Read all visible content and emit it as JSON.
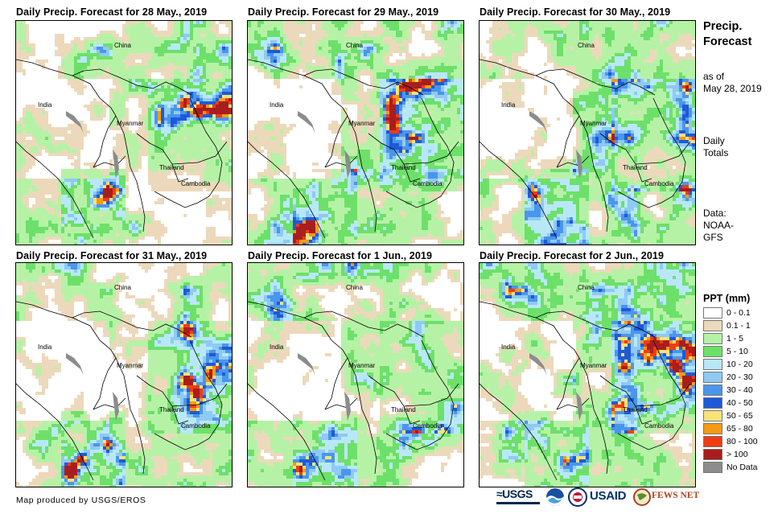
{
  "panels": [
    {
      "title": "Daily Precip. Forecast for 28 May., 2019",
      "variant": 0
    },
    {
      "title": "Daily Precip. Forecast for 29 May., 2019",
      "variant": 1
    },
    {
      "title": "Daily Precip. Forecast for 30 May., 2019",
      "variant": 2
    },
    {
      "title": "Daily Precip. Forecast for 31 May., 2019",
      "variant": 3
    },
    {
      "title": "Daily Precip. Forecast for 1 Jun., 2019",
      "variant": 4
    },
    {
      "title": "Daily Precip. Forecast for 2 Jun., 2019",
      "variant": 5
    }
  ],
  "country_labels": [
    "China",
    "India",
    "Myanmar",
    "Thailand",
    "Cambodia"
  ],
  "sidebar": {
    "title_line1": "Precip.",
    "title_line2": "Forecast",
    "asof_line1": "as of",
    "asof_line2": "May 28, 2019",
    "daily_line1": "Daily",
    "daily_line2": "Totals",
    "data_line1": "Data:",
    "data_line2": "NOAA-",
    "data_line3": "GFS"
  },
  "legend": {
    "title": "PPT (mm)",
    "items": [
      {
        "label": "0 - 0.1",
        "color": "#ffffff"
      },
      {
        "label": "0.1 - 1",
        "color": "#ecd9bb"
      },
      {
        "label": "1 - 5",
        "color": "#b6f2a6"
      },
      {
        "label": "5 - 10",
        "color": "#6de06a"
      },
      {
        "label": "10 - 20",
        "color": "#b8e8f8"
      },
      {
        "label": "20 - 30",
        "color": "#8ecaf2"
      },
      {
        "label": "30 - 40",
        "color": "#4a96ea"
      },
      {
        "label": "40 - 50",
        "color": "#1e5ad8"
      },
      {
        "label": "50 - 65",
        "color": "#f8e27a"
      },
      {
        "label": "65 - 80",
        "color": "#f59a14"
      },
      {
        "label": "80 - 100",
        "color": "#f03c14"
      },
      {
        "label": "> 100",
        "color": "#a81e1e"
      },
      {
        "label": "No Data",
        "color": "#8c8c8c"
      }
    ]
  },
  "footer": {
    "credit": "Map produced by USGS/EROS",
    "logos": [
      "USGS",
      "NOAA",
      "USAID",
      "FEWS NET"
    ],
    "logo_text": {
      "usgs": "≈USGS",
      "usaid": "USAID",
      "fews": "FEWS NET"
    }
  }
}
